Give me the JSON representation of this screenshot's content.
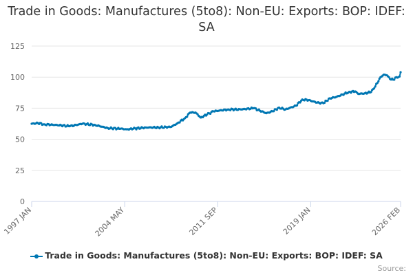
{
  "chart_data": {
    "type": "line",
    "title": "Trade in Goods: Manufactures (5to8): Non-EU: Exports: BOP: IDEF: SA",
    "xlabel": "",
    "ylabel": "",
    "ylim": [
      0,
      125
    ],
    "yticks": [
      0,
      25,
      50,
      75,
      100,
      125
    ],
    "x_tick_labels": [
      "1997 JAN",
      "2004 MAY",
      "2011 SEP",
      "2019 JAN",
      "2026 FEB"
    ],
    "x_tick_month_index": [
      0,
      88,
      176,
      264,
      349
    ],
    "grid": true,
    "legend_position": "bottom-center",
    "series": [
      {
        "name": "Trade in Goods: Manufactures (5to8): Non-EU: Exports: BOP: IDEF: SA",
        "color": "#0077b3",
        "anchors": [
          [
            0,
            62.5
          ],
          [
            6,
            63.0
          ],
          [
            12,
            62.0
          ],
          [
            24,
            61.5
          ],
          [
            36,
            60.5
          ],
          [
            48,
            62.5
          ],
          [
            60,
            61.5
          ],
          [
            72,
            59.0
          ],
          [
            84,
            58.5
          ],
          [
            90,
            58.0
          ],
          [
            96,
            58.5
          ],
          [
            108,
            59.5
          ],
          [
            120,
            59.5
          ],
          [
            132,
            60.0
          ],
          [
            138,
            63.0
          ],
          [
            145,
            67.0
          ],
          [
            150,
            71.5
          ],
          [
            155,
            71.5
          ],
          [
            160,
            67.5
          ],
          [
            166,
            70.0
          ],
          [
            172,
            72.5
          ],
          [
            186,
            74.0
          ],
          [
            198,
            74.0
          ],
          [
            210,
            75.0
          ],
          [
            222,
            71.0
          ],
          [
            228,
            72.5
          ],
          [
            234,
            75.5
          ],
          [
            240,
            74.0
          ],
          [
            250,
            77.0
          ],
          [
            256,
            82.0
          ],
          [
            262,
            81.5
          ],
          [
            270,
            79.5
          ],
          [
            276,
            79.0
          ],
          [
            282,
            83.0
          ],
          [
            288,
            84.0
          ],
          [
            294,
            86.0
          ],
          [
            300,
            88.0
          ],
          [
            306,
            88.5
          ],
          [
            309,
            86.5
          ],
          [
            315,
            87.0
          ],
          [
            321,
            88.0
          ],
          [
            324,
            91.0
          ],
          [
            330,
            100.0
          ],
          [
            333,
            102.0
          ],
          [
            336,
            101.5
          ],
          [
            339,
            98.5
          ],
          [
            342,
            98.0
          ],
          [
            345,
            100.0
          ],
          [
            348,
            100.5
          ],
          [
            349,
            104.0
          ]
        ]
      }
    ]
  },
  "legend": {
    "label": "Trade in Goods: Manufactures (5to8): Non-EU: Exports: BOP: IDEF: SA"
  },
  "credits": {
    "label": "Source:"
  }
}
